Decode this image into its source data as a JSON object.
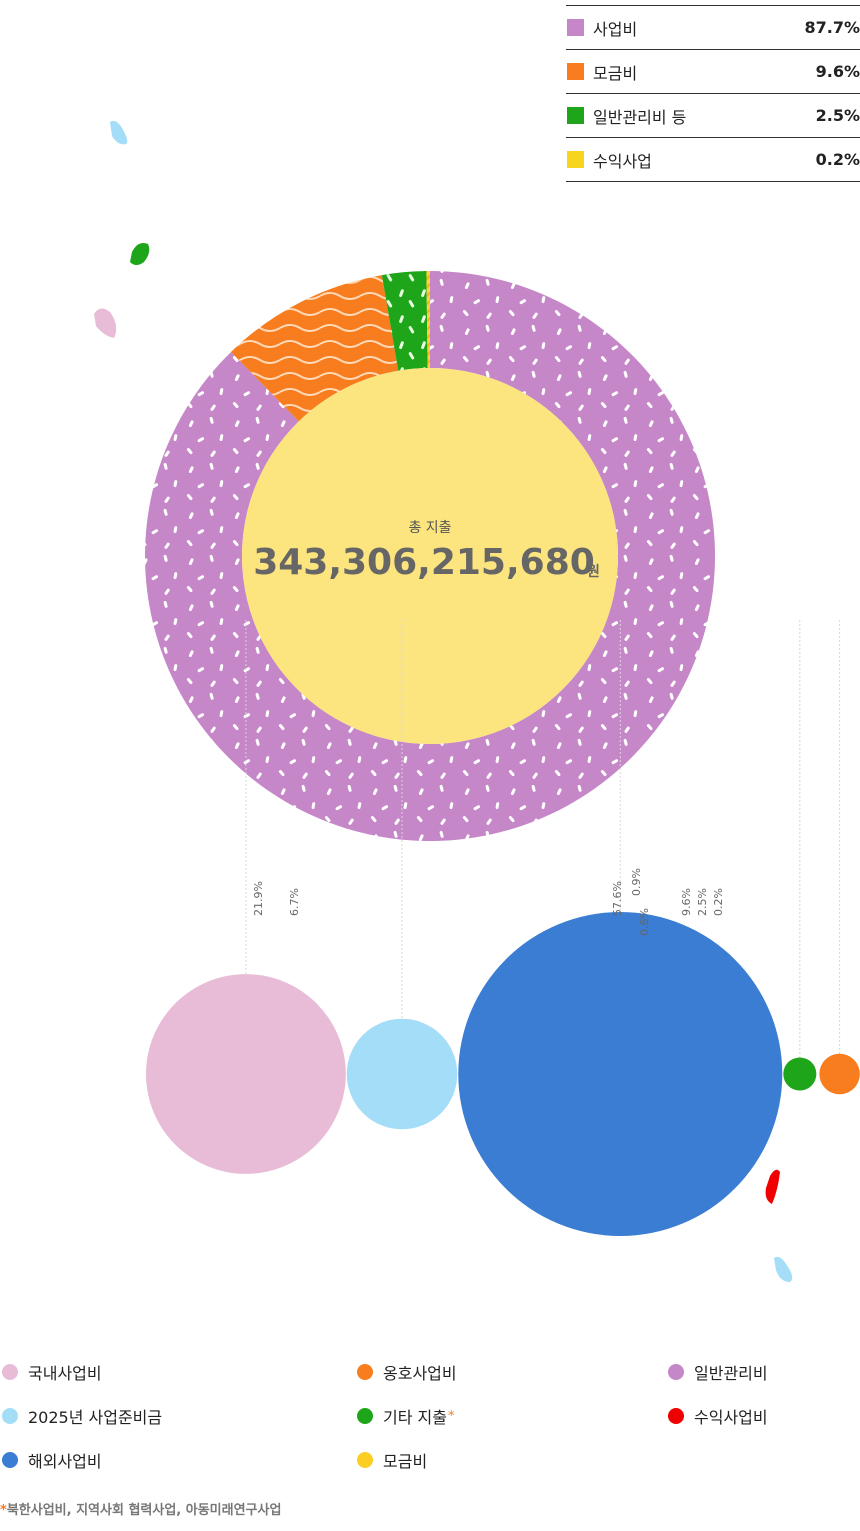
{
  "legend_top": [
    {
      "label": "사업비",
      "value": "87.7%",
      "color": "#c587c8"
    },
    {
      "label": "모금비",
      "value": "9.6%",
      "color": "#f77d1e"
    },
    {
      "label": "일반관리비 등",
      "value": "2.5%",
      "color": "#1ea51a"
    },
    {
      "label": "수익사업",
      "value": "0.2%",
      "color": "#f7d51e"
    }
  ],
  "center": {
    "label": "총 지출",
    "amount": "343,306,215,680",
    "unit": "원"
  },
  "chart_data": [
    {
      "type": "pie",
      "categories": [
        "사업비",
        "모금비",
        "일반관리비 등",
        "수익사업"
      ],
      "values": [
        87.7,
        9.6,
        2.5,
        0.2
      ],
      "colors": [
        "#c587c8",
        "#f77d1e",
        "#1ea51a",
        "#f7d51e"
      ]
    },
    {
      "type": "scatter",
      "categories": [
        "국내사업비",
        "2025년 사업준비금",
        "해외사업비",
        "옹호사업비",
        "기타 지출",
        "모금비",
        "일반관리비",
        "수익사업비"
      ],
      "values": [
        21.9,
        6.7,
        57.6,
        0.9,
        0.6,
        9.6,
        2.5,
        0.2
      ],
      "labels": [
        "21.9%",
        "6.7%",
        "57.6%",
        "0.9%",
        "0.6%",
        "9.6%",
        "2.5%",
        "0.2%"
      ],
      "colors": [
        "#e8bcd6",
        "#a3ddf7",
        "#3a7dd2",
        "#f77d1e",
        "#1ea51a",
        "#fcce24",
        "#c587c8",
        "#f00000"
      ]
    }
  ],
  "legend_bottom": [
    {
      "label": "국내사업비",
      "color": "#e8bcd6",
      "star": false
    },
    {
      "label": "2025년 사업준비금",
      "color": "#a3ddf7",
      "star": false
    },
    {
      "label": "해외사업비",
      "color": "#3a7dd2",
      "star": false
    },
    {
      "label": "옹호사업비",
      "color": "#f77d1e",
      "star": false
    },
    {
      "label": "기타 지출",
      "color": "#1ea51a",
      "star": true
    },
    {
      "label": "모금비",
      "color": "#fcce24",
      "star": false
    },
    {
      "label": "일반관리비",
      "color": "#c587c8",
      "star": false
    },
    {
      "label": "수익사업비",
      "color": "#f00000",
      "star": false
    }
  ],
  "footnote": {
    "star": "*",
    "text": "북한사업비, 지역사회 협력사업, 아동미래연구사업"
  }
}
